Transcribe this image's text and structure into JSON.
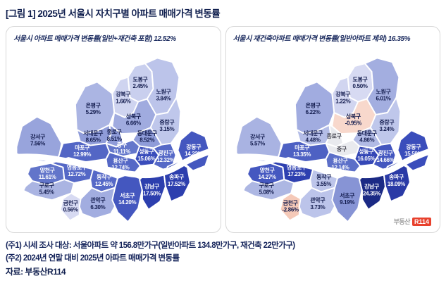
{
  "title": "[그림 1] 2025년 서울시 자치구별 아파트 매매가격 변동률",
  "footnotes": [
    "(주1) 시세 조사 대상: 서울아파트 약 156.8만가구(일반아파트 134.8만가구, 재건축 22만가구)",
    "(주2) 2024년 연말 대비 2025년 아파트 매매가격 변동률"
  ],
  "source_label": "자료: 부동산R114",
  "logo": {
    "prefix": "부동산",
    "badge": "R114"
  },
  "colors": {
    "title_navy": "#101f4e",
    "label_navy": "#131c4e",
    "negative_pink": "#f8d8cc",
    "nodata_gray": "#e9eaee",
    "logo_red": "#e8412d"
  },
  "chart_data": [
    {
      "type": "choropleth",
      "map": "Seoul 25 autonomous districts",
      "title": "서울시 아파트 매매가격 변동률(일반+재건축 포함) 12.52%",
      "overall_pct": 12.52,
      "unit": "%",
      "districts": [
        {
          "id": "dobong",
          "name": "도봉구",
          "value": 2.45,
          "display": "2.45%",
          "fill": "#c9cfee"
        },
        {
          "id": "gangbuk",
          "name": "강북구",
          "value": 1.66,
          "display": "1.66%",
          "fill": "#cfd4f0"
        },
        {
          "id": "nowon",
          "name": "노원구",
          "value": 3.84,
          "display": "3.84%",
          "fill": "#bcc4ea"
        },
        {
          "id": "eunpyeong",
          "name": "은평구",
          "value": 5.29,
          "display": "5.29%",
          "fill": "#abb5e3"
        },
        {
          "id": "seongbuk",
          "name": "성북구",
          "value": 6.66,
          "display": "6.66%",
          "fill": "#a0abdf"
        },
        {
          "id": "jungnang",
          "name": "중랑구",
          "value": 3.15,
          "display": "3.15%",
          "fill": "#bfc7eb"
        },
        {
          "id": "seodaemun",
          "name": "서대문구",
          "value": 8.65,
          "display": "8.65%",
          "fill": "#8f9cd9"
        },
        {
          "id": "jongno",
          "name": "종로구",
          "value": 8.51,
          "display": "8.51%",
          "fill": "#8f9cd9"
        },
        {
          "id": "dongdaemun",
          "name": "동대문구",
          "value": 8.52,
          "display": "8.52%",
          "fill": "#8f9cd9"
        },
        {
          "id": "jung",
          "name": "중구",
          "value": 11.11,
          "display": "11.11%",
          "fill": "#6477cb"
        },
        {
          "id": "mapo",
          "name": "마포구",
          "value": 12.99,
          "display": "12.99%",
          "fill": "#5366c5"
        },
        {
          "id": "seongdong",
          "name": "성동구",
          "value": 15.06,
          "display": "15.06%",
          "fill": "#3a4dbb"
        },
        {
          "id": "gwangjin",
          "name": "광진구",
          "value": 12.32,
          "display": "12.32%",
          "fill": "#5669c7"
        },
        {
          "id": "gangdong",
          "name": "강동구",
          "value": 14.22,
          "display": "14.22%",
          "fill": "#4457bf"
        },
        {
          "id": "gangseo",
          "name": "강서구",
          "value": 7.56,
          "display": "7.56%",
          "fill": "#98a4dc"
        },
        {
          "id": "yongsan",
          "name": "용산구",
          "value": 12.74,
          "display": "12.74%",
          "fill": "#5568c6"
        },
        {
          "id": "yangcheon",
          "name": "양천구",
          "value": 11.61,
          "display": "11.61%",
          "fill": "#6275ca"
        },
        {
          "id": "yeongdeungpo",
          "name": "영등포구",
          "value": 12.72,
          "display": "12.72%",
          "fill": "#5568c6"
        },
        {
          "id": "guro",
          "name": "구로구",
          "value": 5.45,
          "display": "5.45%",
          "fill": "#aab4e2"
        },
        {
          "id": "dongjak",
          "name": "동작구",
          "value": 12.45,
          "display": "12.45%",
          "fill": "#5669c7"
        },
        {
          "id": "geumcheon",
          "name": "금천구",
          "value": 0.56,
          "display": "0.56%",
          "fill": "#d7daf2"
        },
        {
          "id": "gwanak",
          "name": "관악구",
          "value": 6.3,
          "display": "6.30%",
          "fill": "#a2ade0"
        },
        {
          "id": "seocho",
          "name": "서초구",
          "value": 14.2,
          "display": "14.20%",
          "fill": "#4457bf"
        },
        {
          "id": "gangnam",
          "name": "강남구",
          "value": 17.5,
          "display": "17.50%",
          "fill": "#2d3fae"
        },
        {
          "id": "songpa",
          "name": "송파구",
          "value": 17.52,
          "display": "17.52%",
          "fill": "#2d3fae"
        }
      ]
    },
    {
      "type": "choropleth",
      "map": "Seoul 25 autonomous districts",
      "title": "서울시 재건축아파트 매매가격 변동률(일반아파트 제외) 16.35%",
      "overall_pct": 16.35,
      "unit": "%",
      "districts": [
        {
          "id": "dobong",
          "name": "도봉구",
          "value": 0.5,
          "display": "0.50%",
          "fill": "#d7daf2"
        },
        {
          "id": "gangbuk",
          "name": "강북구",
          "value": 1.22,
          "display": "1.22%",
          "fill": "#d1d5f0"
        },
        {
          "id": "nowon",
          "name": "노원구",
          "value": 6.01,
          "display": "6.01%",
          "fill": "#a3aee0"
        },
        {
          "id": "eunpyeong",
          "name": "은평구",
          "value": 6.22,
          "display": "6.22%",
          "fill": "#a1ace0"
        },
        {
          "id": "seongbuk",
          "name": "성북구",
          "value": -0.95,
          "display": "-0.95%",
          "fill": "#f8d8cc"
        },
        {
          "id": "jungnang",
          "name": "중랑구",
          "value": 3.24,
          "display": "3.24%",
          "fill": "#bfc7eb"
        },
        {
          "id": "seodaemun",
          "name": "서대문구",
          "value": 4.48,
          "display": "4.48%",
          "fill": "#b4bde7"
        },
        {
          "id": "jongno",
          "name": "종로구",
          "value": null,
          "display": null,
          "fill": "#e9eaee"
        },
        {
          "id": "dongdaemun",
          "name": "동대문구",
          "value": 4.86,
          "display": "4.86%",
          "fill": "#b1bae5"
        },
        {
          "id": "jung",
          "name": "중구",
          "value": null,
          "display": null,
          "fill": "#e9eaee"
        },
        {
          "id": "mapo",
          "name": "마포구",
          "value": 13.35,
          "display": "13.35%",
          "fill": "#4e61c3"
        },
        {
          "id": "seongdong",
          "name": "성동구",
          "value": 16.05,
          "display": "16.05%",
          "fill": "#3547b6"
        },
        {
          "id": "gwangjin",
          "name": "광진구",
          "value": 14.66,
          "display": "14.66%",
          "fill": "#4356bf"
        },
        {
          "id": "gangdong",
          "name": "강동구",
          "value": 15.59,
          "display": "15.59%",
          "fill": "#3a4dbb"
        },
        {
          "id": "gangseo",
          "name": "강서구",
          "value": 5.57,
          "display": "5.57%",
          "fill": "#a9b3e2"
        },
        {
          "id": "yongsan",
          "name": "용산구",
          "value": 12.14,
          "display": "12.14%",
          "fill": "#5c6fc8"
        },
        {
          "id": "yangcheon",
          "name": "양천구",
          "value": 14.27,
          "display": "14.27%",
          "fill": "#4558c0"
        },
        {
          "id": "yeongdeungpo",
          "name": "영등포구",
          "value": 17.23,
          "display": "17.23%",
          "fill": "#2e40b0"
        },
        {
          "id": "guro",
          "name": "구로구",
          "value": 5.08,
          "display": "5.08%",
          "fill": "#adb7e3"
        },
        {
          "id": "dongjak",
          "name": "동작구",
          "value": 3.55,
          "display": "3.55%",
          "fill": "#bdc5ea"
        },
        {
          "id": "geumcheon",
          "name": "금천구",
          "value": -2.86,
          "display": "-2.86%",
          "fill": "#f5c9b8"
        },
        {
          "id": "gwanak",
          "name": "관악구",
          "value": 3.73,
          "display": "3.73%",
          "fill": "#bcc4ea"
        },
        {
          "id": "seocho",
          "name": "서초구",
          "value": 9.19,
          "display": "9.19%",
          "fill": "#8794d5"
        },
        {
          "id": "gangnam",
          "name": "강남구",
          "value": 24.35,
          "display": "24.35%",
          "fill": "#1b2a85"
        },
        {
          "id": "songpa",
          "name": "송파구",
          "value": 18.09,
          "display": "18.09%",
          "fill": "#2a3aa6"
        }
      ]
    }
  ]
}
